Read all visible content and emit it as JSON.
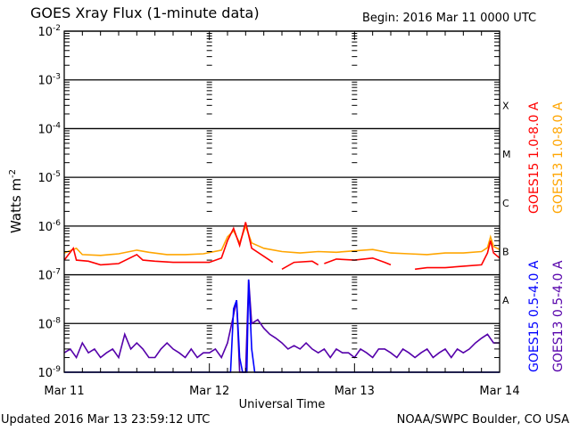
{
  "chart_data": {
    "type": "line",
    "title": "GOES Xray Flux (1-minute data)",
    "begin_label": "Begin:  2016 Mar 11 0000 UTC",
    "ylabel": "Watts m",
    "ylabel_sup": "-2",
    "xlabel": "Universal Time",
    "yscale": "log",
    "ylim": [
      1e-09,
      0.01
    ],
    "y_ticks": [
      {
        "base": "10",
        "exp": "-2",
        "value": 0.01
      },
      {
        "base": "10",
        "exp": "-3",
        "value": 0.001
      },
      {
        "base": "10",
        "exp": "-4",
        "value": 0.0001
      },
      {
        "base": "10",
        "exp": "-5",
        "value": 1e-05
      },
      {
        "base": "10",
        "exp": "-6",
        "value": 1e-06
      },
      {
        "base": "10",
        "exp": "-7",
        "value": 1e-07
      },
      {
        "base": "10",
        "exp": "-8",
        "value": 1e-08
      },
      {
        "base": "10",
        "exp": "-9",
        "value": 1e-09
      }
    ],
    "x_unit": "hours since begin",
    "xlim": [
      0,
      72
    ],
    "x_ticks": [
      {
        "label": "Mar 11",
        "t": 0
      },
      {
        "label": "Mar 12",
        "t": 24
      },
      {
        "label": "Mar 13",
        "t": 48
      },
      {
        "label": "Mar 14",
        "t": 72
      }
    ],
    "flare_classes": [
      {
        "label": "X",
        "value": 0.0003
      },
      {
        "label": "M",
        "value": 3e-05
      },
      {
        "label": "C",
        "value": 3e-06
      },
      {
        "label": "B",
        "value": 3e-07
      },
      {
        "label": "A",
        "value": 3e-08
      }
    ],
    "grid": true,
    "legend_placement": "right",
    "series": [
      {
        "name": "GOES13 1.0-8.0 A",
        "color": "#ffa500",
        "points": [
          [
            0,
            2.8e-07
          ],
          [
            2,
            3.5e-07
          ],
          [
            3,
            2.6e-07
          ],
          [
            6,
            2.5e-07
          ],
          [
            9,
            2.7e-07
          ],
          [
            12,
            3.2e-07
          ],
          [
            14,
            2.9e-07
          ],
          [
            17,
            2.6e-07
          ],
          [
            20,
            2.6e-07
          ],
          [
            23,
            2.7e-07
          ],
          [
            26,
            3.2e-07
          ],
          [
            27,
            6e-07
          ],
          [
            28,
            8e-07
          ],
          [
            29,
            4.5e-07
          ],
          [
            30,
            1e-06
          ],
          [
            31,
            4.5e-07
          ],
          [
            33,
            3.5e-07
          ],
          [
            36,
            3e-07
          ],
          [
            39,
            2.8e-07
          ],
          [
            42,
            3e-07
          ],
          [
            45,
            2.9e-07
          ],
          [
            48,
            3.1e-07
          ],
          [
            51,
            3.3e-07
          ],
          [
            54,
            2.8e-07
          ],
          [
            57,
            2.7e-07
          ],
          [
            60,
            2.6e-07
          ],
          [
            63,
            2.8e-07
          ],
          [
            66,
            2.8e-07
          ],
          [
            69,
            3e-07
          ],
          [
            70,
            3.6e-07
          ],
          [
            70.5,
            6e-07
          ],
          [
            71,
            3.8e-07
          ],
          [
            72,
            3.3e-07
          ]
        ]
      },
      {
        "name": "GOES15 1.0-8.0 A",
        "color": "#ff0000",
        "points": [
          [
            0,
            2e-07
          ],
          [
            1.5,
            3.5e-07
          ],
          [
            2,
            2e-07
          ],
          [
            4,
            1.9e-07
          ],
          [
            6,
            1.6e-07
          ],
          [
            9,
            1.7e-07
          ],
          [
            12,
            2.6e-07
          ],
          [
            13,
            2e-07
          ],
          [
            15,
            1.9e-07
          ],
          [
            18,
            1.8e-07
          ],
          [
            21,
            1.8e-07
          ],
          [
            24,
            1.8e-07
          ],
          [
            26,
            2.2e-07
          ],
          [
            27,
            5e-07
          ],
          [
            28,
            9e-07
          ],
          [
            29,
            4e-07
          ],
          [
            30,
            1.2e-06
          ],
          [
            31,
            3.5e-07
          ],
          [
            33,
            2.4e-07
          ],
          [
            34.5,
            1.8e-07
          ],
          [
            35,
            null
          ],
          [
            36,
            1.3e-07
          ],
          [
            38,
            1.8e-07
          ],
          [
            41,
            1.9e-07
          ],
          [
            42,
            1.6e-07
          ],
          [
            42.5,
            null
          ],
          [
            43,
            1.7e-07
          ],
          [
            45,
            2.1e-07
          ],
          [
            48,
            2e-07
          ],
          [
            51,
            2.2e-07
          ],
          [
            53,
            1.8e-07
          ],
          [
            54,
            1.6e-07
          ],
          [
            55,
            null
          ],
          [
            58,
            1.3e-07
          ],
          [
            60,
            1.4e-07
          ],
          [
            63,
            1.4e-07
          ],
          [
            66,
            1.5e-07
          ],
          [
            69,
            1.6e-07
          ],
          [
            70,
            2.8e-07
          ],
          [
            70.5,
            5e-07
          ],
          [
            71,
            2.8e-07
          ],
          [
            72,
            2.2e-07
          ]
        ]
      },
      {
        "name": "GOES13 0.5-4.0 A",
        "color": "#5500aa",
        "points": [
          [
            0,
            2.5e-09
          ],
          [
            1,
            3e-09
          ],
          [
            2,
            2e-09
          ],
          [
            3,
            4e-09
          ],
          [
            4,
            2.5e-09
          ],
          [
            5,
            3e-09
          ],
          [
            6,
            2e-09
          ],
          [
            7,
            2.5e-09
          ],
          [
            8,
            3e-09
          ],
          [
            9,
            2e-09
          ],
          [
            10,
            6e-09
          ],
          [
            11,
            3e-09
          ],
          [
            12,
            4e-09
          ],
          [
            13,
            3e-09
          ],
          [
            14,
            2e-09
          ],
          [
            15,
            2e-09
          ],
          [
            16,
            3e-09
          ],
          [
            17,
            4e-09
          ],
          [
            18,
            3e-09
          ],
          [
            19,
            2.5e-09
          ],
          [
            20,
            2e-09
          ],
          [
            21,
            3e-09
          ],
          [
            22,
            2e-09
          ],
          [
            23,
            2.5e-09
          ],
          [
            24,
            2.5e-09
          ],
          [
            25,
            3e-09
          ],
          [
            26,
            2e-09
          ],
          [
            27,
            4e-09
          ],
          [
            28,
            1.5e-08
          ],
          [
            28.5,
            3e-08
          ],
          [
            29,
            1e-09
          ],
          [
            30,
            1e-09
          ],
          [
            30.5,
            8e-08
          ],
          [
            31,
            1e-08
          ],
          [
            32,
            1.2e-08
          ],
          [
            33,
            8e-09
          ],
          [
            34,
            6e-09
          ],
          [
            35,
            5e-09
          ],
          [
            36,
            4e-09
          ],
          [
            37,
            3e-09
          ],
          [
            38,
            3.5e-09
          ],
          [
            39,
            3e-09
          ],
          [
            40,
            4e-09
          ],
          [
            41,
            3e-09
          ],
          [
            42,
            2.5e-09
          ],
          [
            43,
            3e-09
          ],
          [
            44,
            2e-09
          ],
          [
            45,
            3e-09
          ],
          [
            46,
            2.5e-09
          ],
          [
            47,
            2.5e-09
          ],
          [
            48,
            2e-09
          ],
          [
            49,
            3e-09
          ],
          [
            50,
            2.5e-09
          ],
          [
            51,
            2e-09
          ],
          [
            52,
            3e-09
          ],
          [
            53,
            3e-09
          ],
          [
            54,
            2.5e-09
          ],
          [
            55,
            2e-09
          ],
          [
            56,
            3e-09
          ],
          [
            57,
            2.5e-09
          ],
          [
            58,
            2e-09
          ],
          [
            59,
            2.5e-09
          ],
          [
            60,
            3e-09
          ],
          [
            61,
            2e-09
          ],
          [
            62,
            2.5e-09
          ],
          [
            63,
            3e-09
          ],
          [
            64,
            2e-09
          ],
          [
            65,
            3e-09
          ],
          [
            66,
            2.5e-09
          ],
          [
            67,
            3e-09
          ],
          [
            68,
            4e-09
          ],
          [
            69,
            5e-09
          ],
          [
            70,
            6e-09
          ],
          [
            71,
            4e-09
          ],
          [
            72,
            4e-09
          ]
        ]
      },
      {
        "name": "GOES15 0.5-4.0 A",
        "color": "#0000ff",
        "points": [
          [
            0,
            1e-09
          ],
          [
            27.5,
            1e-09
          ],
          [
            28,
            2e-08
          ],
          [
            28.5,
            3e-08
          ],
          [
            29,
            2e-09
          ],
          [
            29.5,
            1e-09
          ],
          [
            30.2,
            1e-09
          ],
          [
            30.5,
            8e-08
          ],
          [
            31,
            3e-09
          ],
          [
            31.5,
            1e-09
          ],
          [
            72,
            1e-09
          ]
        ]
      }
    ]
  },
  "footer": {
    "updated": "Updated 2016 Mar 13 23:59:12 UTC",
    "credit": "NOAA/SWPC Boulder, CO USA"
  }
}
